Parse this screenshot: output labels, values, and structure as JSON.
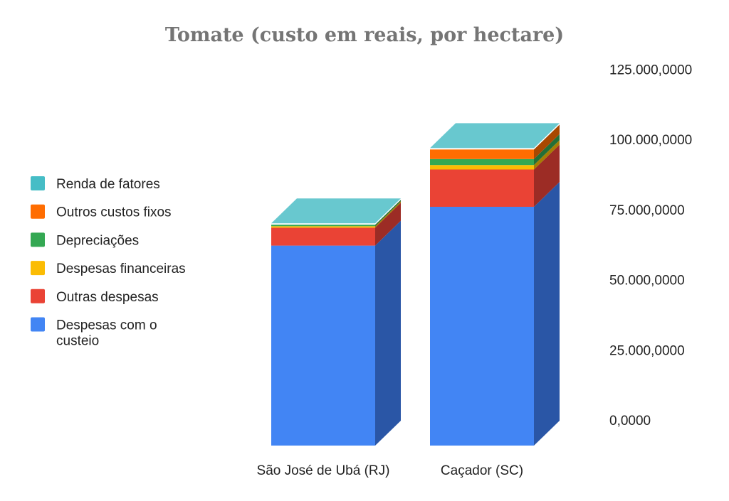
{
  "chart_data": {
    "type": "bar",
    "stacked": true,
    "three_d": true,
    "title": "Tomate (custo em reais, por hectare)",
    "categories": [
      "São José de Ubá (RJ)",
      "Caçador (SC)"
    ],
    "ylim": [
      0,
      125000
    ],
    "yticks": [
      "0,0000",
      "25.000,0000",
      "50.000,0000",
      "75.000,0000",
      "100.000,0000",
      "125.000,0000"
    ],
    "ytick_values": [
      0,
      25000,
      50000,
      75000,
      100000,
      125000
    ],
    "legend_position": "left",
    "series": [
      {
        "name": "Despesas com o custeio",
        "color": "#4285f4",
        "side_color": "#2a56a6",
        "values": [
          67000,
          80000
        ]
      },
      {
        "name": "Outras despesas",
        "color": "#ea4335",
        "side_color": "#9c2c25",
        "values": [
          6000,
          12500
        ]
      },
      {
        "name": "Despesas financeiras",
        "color": "#fbbc04",
        "side_color": "#a67d03",
        "values": [
          500,
          1500
        ]
      },
      {
        "name": "Depreciações",
        "color": "#34a853",
        "side_color": "#236f37",
        "values": [
          500,
          2000
        ]
      },
      {
        "name": "Outros custos fixos",
        "color": "#ff6d01",
        "side_color": "#a84801",
        "values": [
          0,
          3200
        ]
      },
      {
        "name": "Renda de fatores",
        "color": "#46bdc6",
        "side_color": "#2e7d83",
        "values": [
          0,
          0
        ]
      }
    ]
  }
}
